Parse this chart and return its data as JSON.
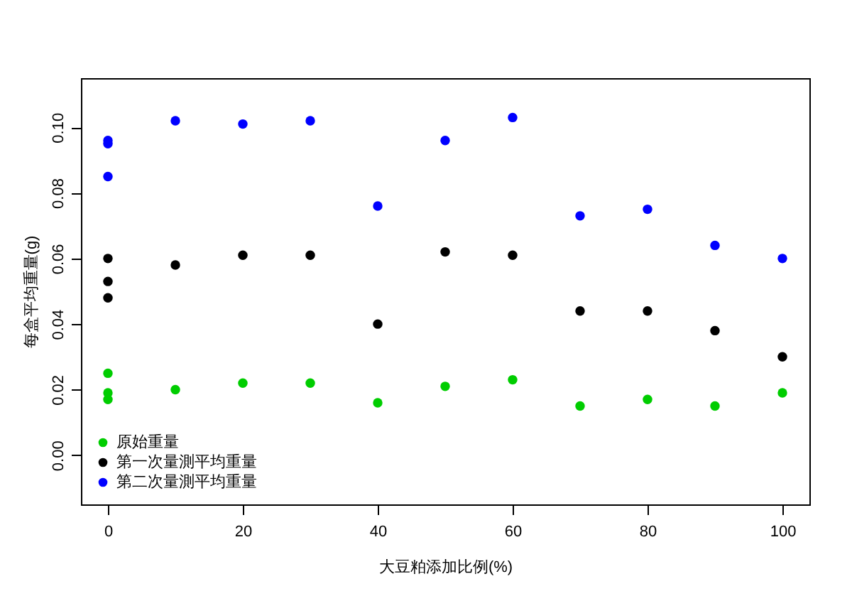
{
  "chart_data": {
    "type": "scatter",
    "xlabel": "大豆粕添加比例(%)",
    "ylabel": "每盒平均重量(g)",
    "xlim": [
      -4,
      104
    ],
    "xticks": [
      0,
      20,
      40,
      60,
      80,
      100
    ],
    "ylim": [
      -0.015,
      0.115
    ],
    "yticks": [
      {
        "value": 0,
        "label": "0.00"
      },
      {
        "value": 0.02,
        "label": "0.02"
      },
      {
        "value": 0.04,
        "label": "0.04"
      },
      {
        "value": 0.06,
        "label": "0.06"
      },
      {
        "value": 0.08,
        "label": "0.08"
      },
      {
        "value": 0.1,
        "label": "0.10"
      }
    ],
    "x": [
      0,
      0,
      0,
      10,
      20,
      30,
      40,
      50,
      60,
      70,
      80,
      90,
      100
    ],
    "series": [
      {
        "name": "原始重量",
        "color": "#00cd00",
        "values": [
          0.025,
          0.019,
          0.017,
          0.02,
          0.022,
          0.022,
          0.016,
          0.021,
          0.023,
          0.015,
          0.017,
          0.015,
          0.019
        ]
      },
      {
        "name": "第一次量測平均重量",
        "color": "#000000",
        "values": [
          0.06,
          0.053,
          0.048,
          0.058,
          0.061,
          0.061,
          0.04,
          0.062,
          0.061,
          0.044,
          0.044,
          0.038,
          0.03
        ]
      },
      {
        "name": "第二次量測平均重量",
        "color": "#0000ff",
        "values": [
          0.096,
          0.095,
          0.085,
          0.102,
          0.101,
          0.102,
          0.076,
          0.096,
          0.103,
          0.073,
          0.075,
          0.064,
          0.06
        ]
      }
    ],
    "grid": false,
    "legend": "bottom left",
    "marker": "circle"
  }
}
